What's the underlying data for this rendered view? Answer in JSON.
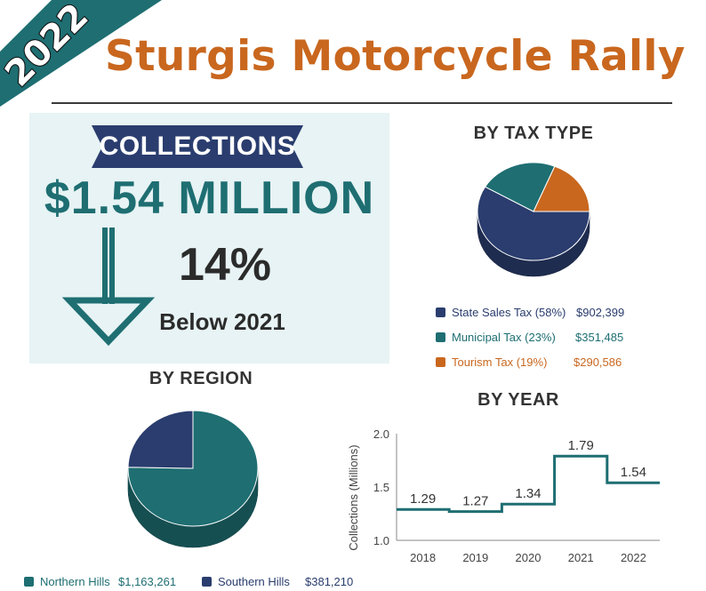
{
  "corner_banner": {
    "year": "2022",
    "color": "#1e6e72"
  },
  "title": "Sturgis Motorcycle Rally",
  "collections": {
    "label": "COLLECTIONS",
    "amount": "$1.54 MILLION",
    "change_percent": "14%",
    "change_caption": "Below 2021",
    "direction_icon": "down-arrow-icon"
  },
  "colors": {
    "title": "#c9671e",
    "dark_blue": "#2a3d6e",
    "teal": "#1e6e72",
    "orange": "#c9671e",
    "panel_bg": "#e7f3f4"
  },
  "by_tax_type": {
    "title": "BY TAX TYPE",
    "legend": [
      {
        "label": "State Sales Tax (58%)",
        "value": "$902,399",
        "color": "#2a3d6e"
      },
      {
        "label": "Municipal Tax (23%)",
        "value": "$351,485",
        "color": "#1e6e72"
      },
      {
        "label": "Tourism Tax (19%)",
        "value": "$290,586",
        "color": "#c9671e"
      }
    ]
  },
  "by_region": {
    "title": "BY REGION",
    "legend": [
      {
        "label": "Northern Hills",
        "value": "$1,163,261",
        "color": "#1e6e72"
      },
      {
        "label": "Southern Hills",
        "value": "$381,210",
        "color": "#2a3d6e"
      }
    ]
  },
  "by_year": {
    "title": "BY YEAR"
  },
  "chart_data": [
    {
      "type": "pie",
      "title": "BY TAX TYPE",
      "categories": [
        "State Sales Tax",
        "Municipal Tax",
        "Tourism Tax"
      ],
      "values": [
        902399,
        351485,
        290586
      ],
      "percent_labels": [
        "58%",
        "23%",
        "19%"
      ],
      "colors": [
        "#2a3d6e",
        "#1e6e72",
        "#c9671e"
      ],
      "style": "3d",
      "legend": "bottom"
    },
    {
      "type": "pie",
      "title": "BY REGION",
      "categories": [
        "Northern Hills",
        "Southern Hills"
      ],
      "values": [
        1163261,
        381210
      ],
      "colors": [
        "#1e6e72",
        "#2a3d6e"
      ],
      "style": "3d",
      "legend": "bottom"
    },
    {
      "type": "line",
      "step": true,
      "title": "BY YEAR",
      "ylabel": "Collections (Millions)",
      "xlabel": "",
      "categories": [
        "2018",
        "2019",
        "2020",
        "2021",
        "2022"
      ],
      "values": [
        1.29,
        1.27,
        1.34,
        1.79,
        1.54
      ],
      "data_labels": [
        "1.29",
        "1.27",
        "1.34",
        "1.79",
        "1.54"
      ],
      "ylim": [
        1.0,
        2.0
      ],
      "yticks": [
        "1.0",
        "1.5",
        "2.0"
      ],
      "color": "#1e6e72",
      "grid": false
    }
  ]
}
